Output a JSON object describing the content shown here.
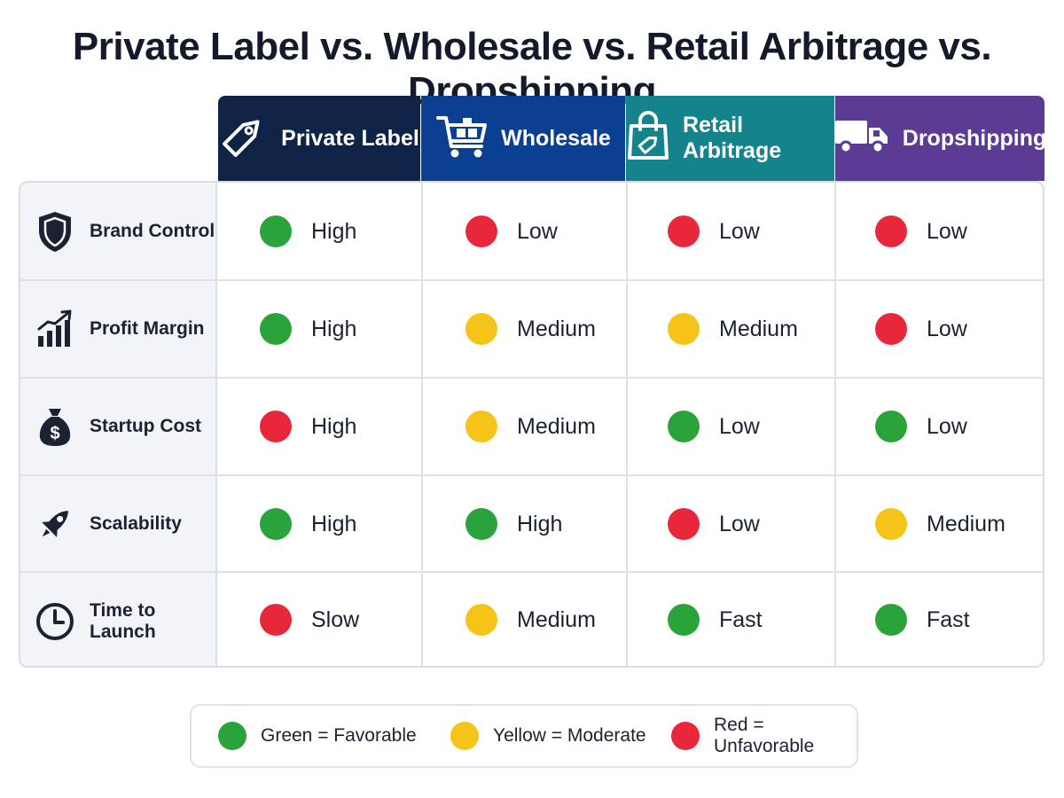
{
  "title": "Private Label vs. Wholesale vs. Retail Arbitrage vs. Dropshipping",
  "colors": {
    "favorable": "#2aa33a",
    "moderate": "#f6c419",
    "unfavorable": "#e8283a",
    "header_private_label": "#0f2346",
    "header_wholesale": "#0a3f91",
    "header_retail_arbitrage": "#14838c",
    "header_dropshipping": "#5b3b94"
  },
  "columns": [
    {
      "label": "Private Label",
      "icon": "price-tag-icon"
    },
    {
      "label": "Wholesale",
      "icon": "shopping-cart-icon"
    },
    {
      "label": "Retail Arbitrage",
      "icon": "shopping-bag-icon"
    },
    {
      "label": "Dropshipping",
      "icon": "delivery-truck-icon"
    }
  ],
  "rows": [
    {
      "label": "Brand Control",
      "icon": "shield-icon",
      "cells": [
        {
          "text": "High",
          "rating": "favorable"
        },
        {
          "text": "Low",
          "rating": "unfavorable"
        },
        {
          "text": "Low",
          "rating": "unfavorable"
        },
        {
          "text": "Low",
          "rating": "unfavorable"
        }
      ]
    },
    {
      "label": "Profit Margin",
      "icon": "growth-chart-icon",
      "cells": [
        {
          "text": "High",
          "rating": "favorable"
        },
        {
          "text": "Medium",
          "rating": "moderate"
        },
        {
          "text": "Medium",
          "rating": "moderate"
        },
        {
          "text": "Low",
          "rating": "unfavorable"
        }
      ]
    },
    {
      "label": "Startup Cost",
      "icon": "money-bag-icon",
      "cells": [
        {
          "text": "High",
          "rating": "unfavorable"
        },
        {
          "text": "Medium",
          "rating": "moderate"
        },
        {
          "text": "Low",
          "rating": "favorable"
        },
        {
          "text": "Low",
          "rating": "favorable"
        }
      ]
    },
    {
      "label": "Scalability",
      "icon": "rocket-icon",
      "cells": [
        {
          "text": "High",
          "rating": "favorable"
        },
        {
          "text": "High",
          "rating": "favorable"
        },
        {
          "text": "Low",
          "rating": "unfavorable"
        },
        {
          "text": "Medium",
          "rating": "moderate"
        }
      ]
    },
    {
      "label": "Time to Launch",
      "icon": "clock-icon",
      "cells": [
        {
          "text": "Slow",
          "rating": "unfavorable"
        },
        {
          "text": "Medium",
          "rating": "moderate"
        },
        {
          "text": "Fast",
          "rating": "favorable"
        },
        {
          "text": "Fast",
          "rating": "favorable"
        }
      ]
    }
  ],
  "legend": [
    {
      "label": "Green = Favorable",
      "rating": "favorable"
    },
    {
      "label": "Yellow = Moderate",
      "rating": "moderate"
    },
    {
      "label": "Red = Unfavorable",
      "rating": "unfavorable"
    }
  ]
}
